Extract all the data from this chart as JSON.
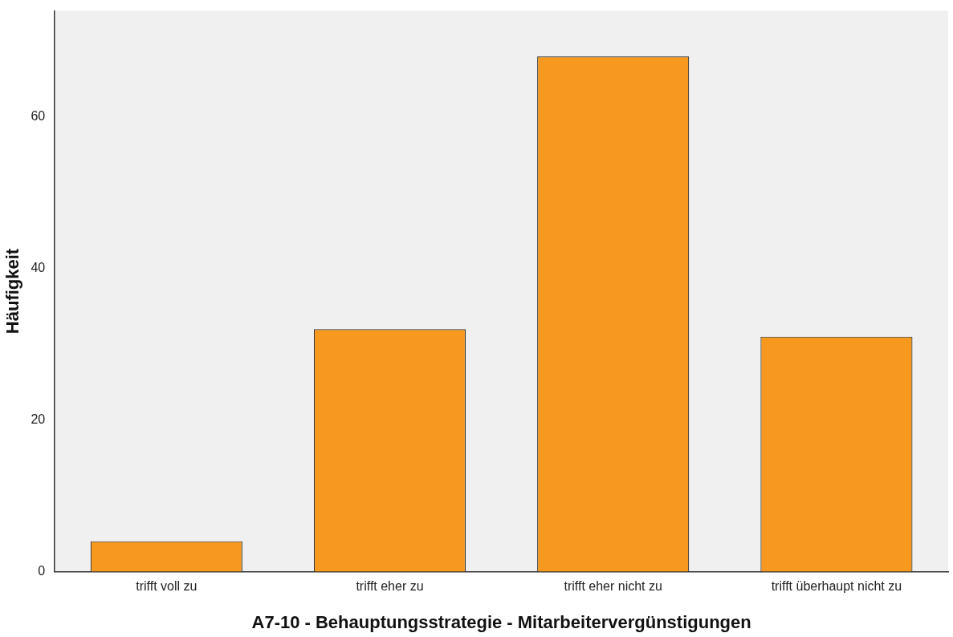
{
  "chart_data": {
    "type": "bar",
    "xlabel": "A7-10 - Behauptungsstrategie - Mitarbeitervergünstigungen",
    "ylabel": "Häufigkeit",
    "categories": [
      "trifft voll zu",
      "trifft eher zu",
      "trifft eher nicht zu",
      "trifft überhaupt nicht zu"
    ],
    "values": [
      4,
      32,
      68,
      31
    ],
    "color": "#f7991f",
    "ylim": [
      0,
      74
    ],
    "yticks": [
      0,
      20,
      40,
      60
    ],
    "grid": false,
    "legend": false
  }
}
